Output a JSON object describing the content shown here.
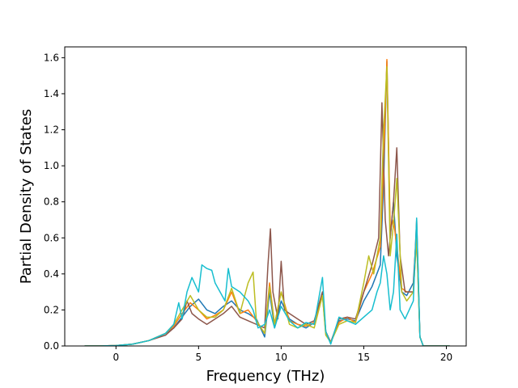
{
  "chart_data": {
    "type": "line",
    "title": "",
    "xlabel": "Frequency (THz)",
    "ylabel": "Partial Density of States",
    "xlim": [
      -3.1,
      21.2
    ],
    "ylim": [
      0.0,
      1.66
    ],
    "xticks": [
      0,
      5,
      10,
      15,
      20
    ],
    "yticks": [
      0.0,
      0.2,
      0.4,
      0.6,
      0.8,
      1.0,
      1.2,
      1.4,
      1.6
    ],
    "xtick_labels": [
      "0",
      "5",
      "10",
      "15",
      "20"
    ],
    "ytick_labels": [
      "0.0",
      "0.2",
      "0.4",
      "0.6",
      "0.8",
      "1.0",
      "1.2",
      "1.4",
      "1.6"
    ],
    "grid": false,
    "legend": "none",
    "series": [
      {
        "color": "#1f77b4",
        "points": [
          [
            -1.9,
            0
          ],
          [
            -1,
            0
          ],
          [
            0,
            0.002
          ],
          [
            1,
            0.01
          ],
          [
            2,
            0.03
          ],
          [
            3,
            0.07
          ],
          [
            3.5,
            0.1
          ],
          [
            4,
            0.16
          ],
          [
            4.5,
            0.22
          ],
          [
            5,
            0.26
          ],
          [
            5.5,
            0.2
          ],
          [
            6,
            0.18
          ],
          [
            6.5,
            0.22
          ],
          [
            7,
            0.25
          ],
          [
            7.5,
            0.2
          ],
          [
            8,
            0.18
          ],
          [
            8.5,
            0.15
          ],
          [
            9,
            0.05
          ],
          [
            9.3,
            0.3
          ],
          [
            9.6,
            0.1
          ],
          [
            10,
            0.25
          ],
          [
            10.5,
            0.15
          ],
          [
            11,
            0.12
          ],
          [
            11.5,
            0.1
          ],
          [
            12,
            0.13
          ],
          [
            12.5,
            0.3
          ],
          [
            12.7,
            0.08
          ],
          [
            13,
            0.02
          ],
          [
            13.5,
            0.14
          ],
          [
            14,
            0.15
          ],
          [
            14.5,
            0.14
          ],
          [
            15,
            0.25
          ],
          [
            15.5,
            0.33
          ],
          [
            16,
            0.45
          ],
          [
            16.2,
            0.9
          ],
          [
            16.4,
            1.58
          ],
          [
            16.6,
            0.6
          ],
          [
            16.8,
            0.8
          ],
          [
            17,
            0.5
          ],
          [
            17.3,
            0.3
          ],
          [
            17.6,
            0.28
          ],
          [
            18,
            0.35
          ],
          [
            18.2,
            0.65
          ],
          [
            18.4,
            0.05
          ],
          [
            18.6,
            0
          ],
          [
            20.2,
            0
          ]
        ]
      },
      {
        "color": "#ff7f0e",
        "points": [
          [
            -1.9,
            0
          ],
          [
            -1,
            0
          ],
          [
            0,
            0.002
          ],
          [
            1,
            0.01
          ],
          [
            2,
            0.03
          ],
          [
            3,
            0.07
          ],
          [
            3.5,
            0.11
          ],
          [
            4,
            0.18
          ],
          [
            4.5,
            0.24
          ],
          [
            5,
            0.2
          ],
          [
            5.5,
            0.15
          ],
          [
            6,
            0.17
          ],
          [
            6.5,
            0.2
          ],
          [
            7,
            0.3
          ],
          [
            7.5,
            0.18
          ],
          [
            8,
            0.2
          ],
          [
            8.5,
            0.14
          ],
          [
            9,
            0.07
          ],
          [
            9.3,
            0.35
          ],
          [
            9.6,
            0.12
          ],
          [
            10,
            0.3
          ],
          [
            10.5,
            0.14
          ],
          [
            11,
            0.12
          ],
          [
            11.5,
            0.11
          ],
          [
            12,
            0.13
          ],
          [
            12.5,
            0.28
          ],
          [
            12.7,
            0.07
          ],
          [
            13,
            0.02
          ],
          [
            13.5,
            0.13
          ],
          [
            14,
            0.16
          ],
          [
            14.5,
            0.13
          ],
          [
            15,
            0.3
          ],
          [
            15.5,
            0.4
          ],
          [
            16,
            0.55
          ],
          [
            16.2,
            1.0
          ],
          [
            16.4,
            1.59
          ],
          [
            16.6,
            0.65
          ],
          [
            16.8,
            0.7
          ],
          [
            17,
            0.55
          ],
          [
            17.3,
            0.32
          ],
          [
            17.6,
            0.3
          ],
          [
            18,
            0.3
          ],
          [
            18.2,
            0.6
          ],
          [
            18.4,
            0.05
          ],
          [
            18.6,
            0
          ],
          [
            20.2,
            0
          ]
        ]
      },
      {
        "color": "#8c564b",
        "points": [
          [
            -1.9,
            0
          ],
          [
            -1,
            0
          ],
          [
            0,
            0.002
          ],
          [
            1,
            0.01
          ],
          [
            2,
            0.03
          ],
          [
            3,
            0.06
          ],
          [
            3.5,
            0.1
          ],
          [
            4,
            0.15
          ],
          [
            4.3,
            0.25
          ],
          [
            4.6,
            0.18
          ],
          [
            5,
            0.15
          ],
          [
            5.5,
            0.12
          ],
          [
            6,
            0.15
          ],
          [
            6.5,
            0.18
          ],
          [
            7,
            0.22
          ],
          [
            7.5,
            0.16
          ],
          [
            8,
            0.14
          ],
          [
            8.5,
            0.12
          ],
          [
            9,
            0.1
          ],
          [
            9.2,
            0.45
          ],
          [
            9.35,
            0.65
          ],
          [
            9.5,
            0.3
          ],
          [
            9.8,
            0.15
          ],
          [
            10,
            0.47
          ],
          [
            10.2,
            0.2
          ],
          [
            10.5,
            0.18
          ],
          [
            11,
            0.15
          ],
          [
            11.5,
            0.12
          ],
          [
            12,
            0.14
          ],
          [
            12.5,
            0.3
          ],
          [
            12.7,
            0.08
          ],
          [
            13,
            0.02
          ],
          [
            13.5,
            0.15
          ],
          [
            14,
            0.16
          ],
          [
            14.5,
            0.15
          ],
          [
            15,
            0.3
          ],
          [
            15.5,
            0.45
          ],
          [
            15.9,
            0.6
          ],
          [
            16.1,
            1.35
          ],
          [
            16.3,
            0.7
          ],
          [
            16.5,
            0.5
          ],
          [
            16.8,
            0.8
          ],
          [
            17,
            1.1
          ],
          [
            17.2,
            0.5
          ],
          [
            17.5,
            0.3
          ],
          [
            18,
            0.3
          ],
          [
            18.2,
            0.7
          ],
          [
            18.4,
            0.05
          ],
          [
            18.6,
            0
          ],
          [
            20.2,
            0
          ]
        ]
      },
      {
        "color": "#bcbd22",
        "points": [
          [
            -1.9,
            0
          ],
          [
            -1,
            0
          ],
          [
            0,
            0.002
          ],
          [
            1,
            0.01
          ],
          [
            2,
            0.03
          ],
          [
            3,
            0.07
          ],
          [
            3.5,
            0.12
          ],
          [
            4,
            0.2
          ],
          [
            4.5,
            0.28
          ],
          [
            5,
            0.2
          ],
          [
            5.5,
            0.16
          ],
          [
            6,
            0.16
          ],
          [
            6.5,
            0.2
          ],
          [
            7,
            0.32
          ],
          [
            7.5,
            0.18
          ],
          [
            8,
            0.35
          ],
          [
            8.3,
            0.41
          ],
          [
            8.5,
            0.14
          ],
          [
            9,
            0.07
          ],
          [
            9.3,
            0.33
          ],
          [
            9.6,
            0.12
          ],
          [
            10,
            0.3
          ],
          [
            10.5,
            0.12
          ],
          [
            11,
            0.1
          ],
          [
            11.5,
            0.12
          ],
          [
            12,
            0.1
          ],
          [
            12.5,
            0.28
          ],
          [
            12.7,
            0.06
          ],
          [
            13,
            0.02
          ],
          [
            13.5,
            0.12
          ],
          [
            14,
            0.14
          ],
          [
            14.5,
            0.13
          ],
          [
            15,
            0.35
          ],
          [
            15.3,
            0.5
          ],
          [
            15.6,
            0.4
          ],
          [
            16,
            0.6
          ],
          [
            16.2,
            1.2
          ],
          [
            16.4,
            1.55
          ],
          [
            16.6,
            0.5
          ],
          [
            16.8,
            0.68
          ],
          [
            17,
            0.93
          ],
          [
            17.3,
            0.3
          ],
          [
            17.6,
            0.25
          ],
          [
            18,
            0.3
          ],
          [
            18.2,
            0.6
          ],
          [
            18.4,
            0.05
          ],
          [
            18.6,
            0
          ],
          [
            20.2,
            0
          ]
        ]
      },
      {
        "color": "#17becf",
        "points": [
          [
            -1.9,
            0
          ],
          [
            -1,
            0
          ],
          [
            0,
            0.002
          ],
          [
            1,
            0.01
          ],
          [
            2,
            0.03
          ],
          [
            3,
            0.07
          ],
          [
            3.5,
            0.12
          ],
          [
            3.8,
            0.24
          ],
          [
            4,
            0.15
          ],
          [
            4.3,
            0.3
          ],
          [
            4.6,
            0.38
          ],
          [
            5,
            0.3
          ],
          [
            5.2,
            0.45
          ],
          [
            5.5,
            0.43
          ],
          [
            5.8,
            0.42
          ],
          [
            6,
            0.35
          ],
          [
            6.3,
            0.3
          ],
          [
            6.6,
            0.25
          ],
          [
            6.8,
            0.43
          ],
          [
            7,
            0.33
          ],
          [
            7.5,
            0.3
          ],
          [
            8,
            0.25
          ],
          [
            8.3,
            0.2
          ],
          [
            8.6,
            0.1
          ],
          [
            9,
            0.12
          ],
          [
            9.3,
            0.2
          ],
          [
            9.6,
            0.1
          ],
          [
            10,
            0.22
          ],
          [
            10.5,
            0.14
          ],
          [
            11,
            0.1
          ],
          [
            11.5,
            0.13
          ],
          [
            12,
            0.12
          ],
          [
            12.5,
            0.38
          ],
          [
            12.7,
            0.08
          ],
          [
            13,
            0.01
          ],
          [
            13.5,
            0.16
          ],
          [
            14,
            0.14
          ],
          [
            14.5,
            0.12
          ],
          [
            15,
            0.16
          ],
          [
            15.5,
            0.2
          ],
          [
            15.8,
            0.3
          ],
          [
            16,
            0.35
          ],
          [
            16.2,
            0.5
          ],
          [
            16.4,
            0.4
          ],
          [
            16.6,
            0.2
          ],
          [
            16.8,
            0.3
          ],
          [
            17,
            0.62
          ],
          [
            17.2,
            0.2
          ],
          [
            17.5,
            0.15
          ],
          [
            18,
            0.25
          ],
          [
            18.2,
            0.71
          ],
          [
            18.4,
            0.05
          ],
          [
            18.6,
            0
          ],
          [
            20.2,
            0
          ]
        ]
      }
    ]
  }
}
